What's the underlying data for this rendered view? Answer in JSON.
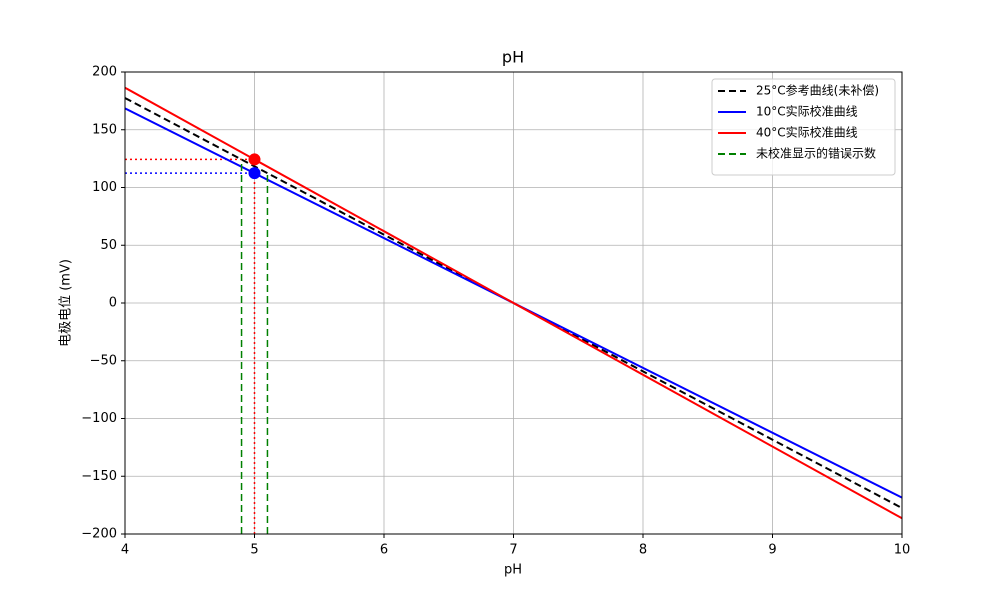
{
  "chart_data": {
    "type": "line",
    "title": "pH",
    "x_label": "pH",
    "y_label": "电极电位 (mV)",
    "xlim": [
      4,
      10
    ],
    "xticks": [
      4,
      5,
      6,
      7,
      8,
      9,
      10
    ],
    "ylim": [
      -200,
      200
    ],
    "yticks": [
      {
        "value": -200,
        "label": "−200"
      },
      {
        "value": -150,
        "label": "−150"
      },
      {
        "value": -100,
        "label": "−100"
      },
      {
        "value": -50,
        "label": "−50"
      },
      0,
      50,
      100,
      150,
      200
    ],
    "grid": true,
    "legend_loc": "upper right",
    "series": [
      {
        "name": "25°C参考曲线(未补偿)",
        "color": "#000000",
        "style": "dashed",
        "x": [
          4,
          10
        ],
        "values": [
          177.5,
          -177.5
        ]
      },
      {
        "name": "10°C实际校准曲线",
        "color": "#0000ff",
        "style": "solid",
        "x": [
          4,
          10
        ],
        "values": [
          168.5,
          -168.5
        ]
      },
      {
        "name": "40°C实际校准曲线",
        "color": "#ff0000",
        "style": "solid",
        "x": [
          4,
          10
        ],
        "values": [
          186.4,
          -186.4
        ]
      },
      {
        "name": "未校准显示的错误示数",
        "color": "#008000",
        "style": "dashed",
        "x": [
          4.9,
          4.9,
          null,
          5.1,
          5.1
        ],
        "values": [
          -200,
          124.3,
          null,
          -200,
          112.4
        ]
      }
    ],
    "guides": [
      {
        "color": "#ff0000",
        "style": "dotted",
        "x": [
          4,
          5
        ],
        "values": [
          124.3,
          124.3
        ]
      },
      {
        "color": "#ff0000",
        "style": "dotted",
        "x": [
          5,
          5
        ],
        "values": [
          -200,
          124.3
        ]
      },
      {
        "color": "#0000ff",
        "style": "dotted",
        "x": [
          4,
          5
        ],
        "values": [
          112.4,
          112.4
        ]
      }
    ],
    "points": [
      {
        "color": "#ff0000",
        "x": 5,
        "value": 124.3
      },
      {
        "color": "#0000ff",
        "x": 5,
        "value": 112.4
      }
    ]
  }
}
